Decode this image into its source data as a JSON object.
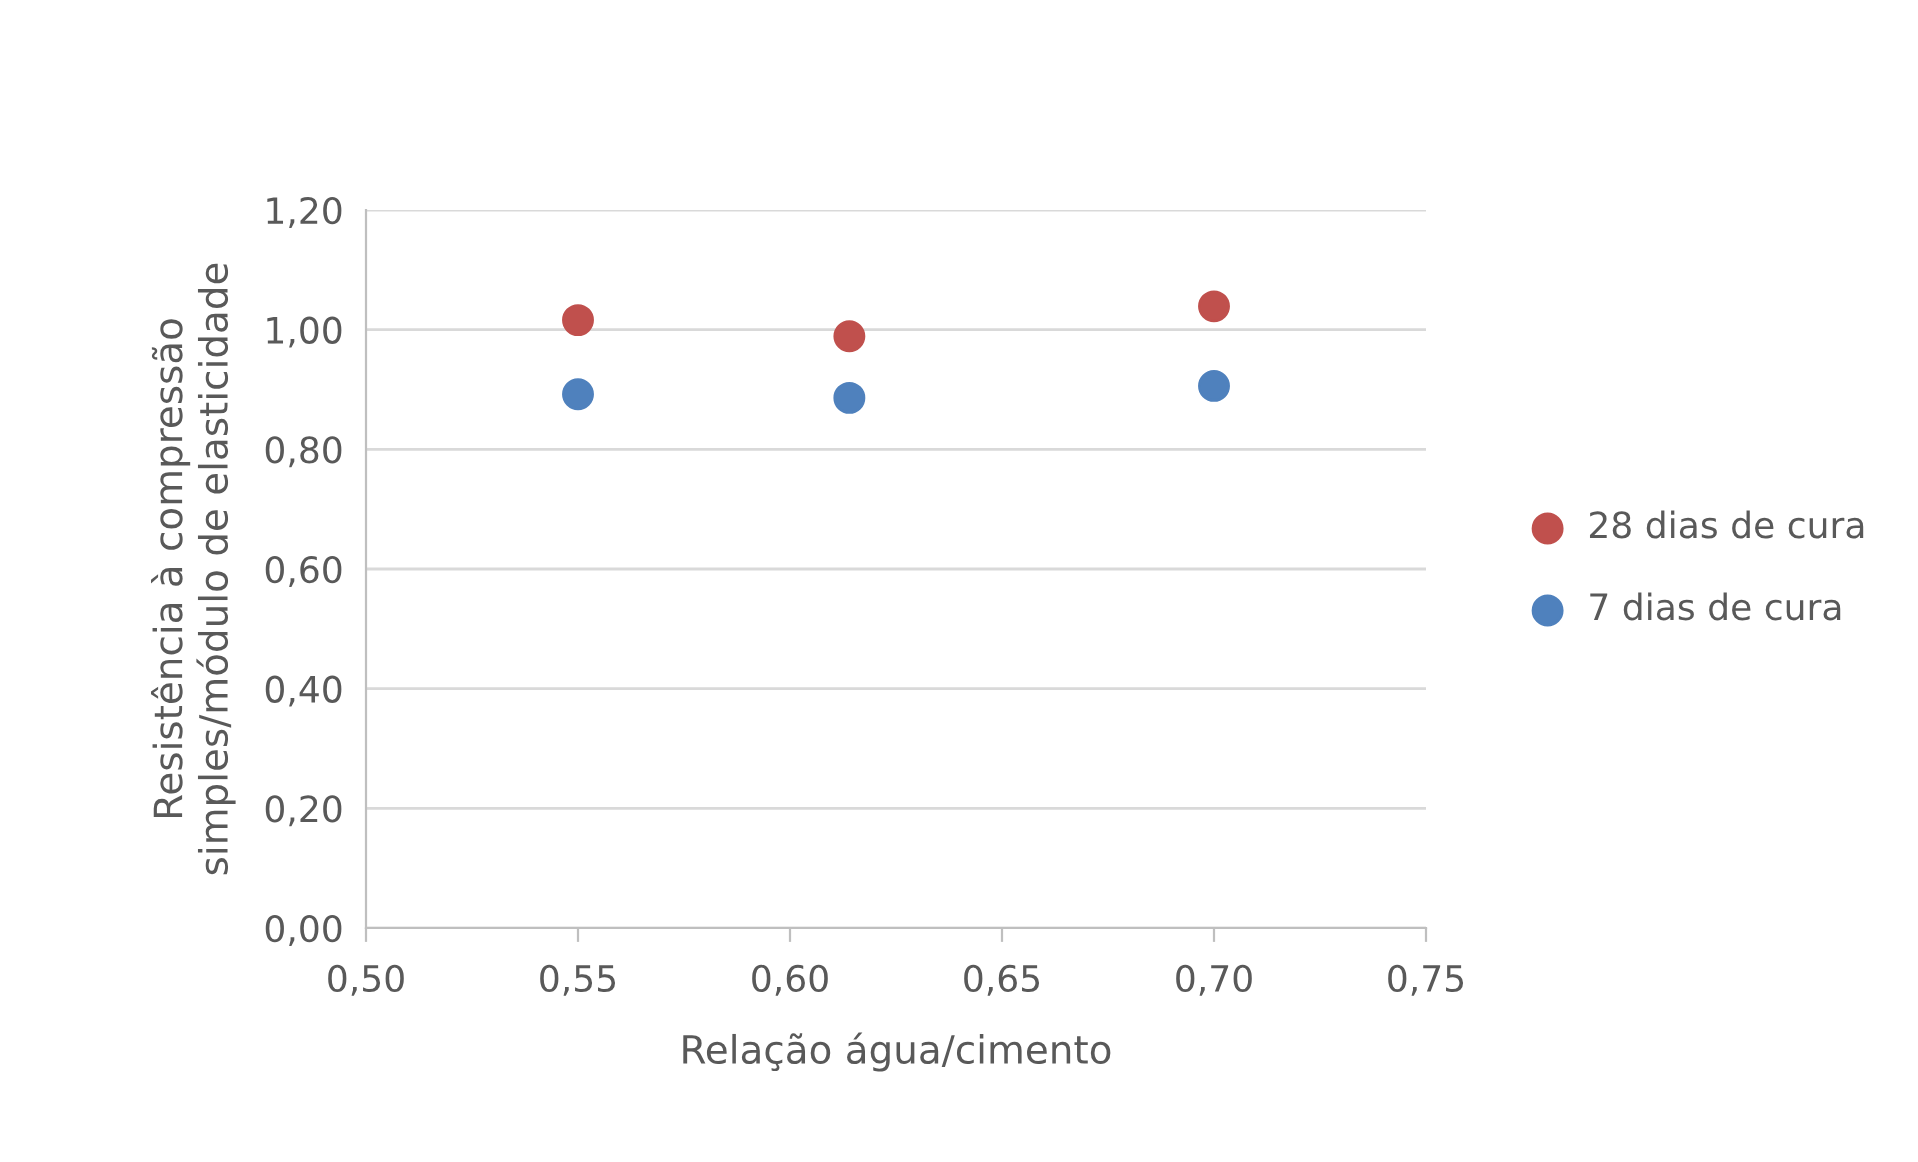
{
  "chart_data": {
    "type": "scatter",
    "xlabel": "Relação água/cimento",
    "ylabel": "Resistência à compressão\nsimples/módulo de elasticidade",
    "series": [
      {
        "name": "28 dias de cura",
        "color": "#c0504d",
        "x": [
          0.55,
          0.614,
          0.7
        ],
        "values": [
          1.016,
          0.989,
          1.039
        ]
      },
      {
        "name": "7 dias de cura",
        "color": "#4f81bd",
        "x": [
          0.55,
          0.614,
          0.7
        ],
        "values": [
          0.892,
          0.886,
          0.906
        ]
      }
    ],
    "xlim": [
      0.5,
      0.75
    ],
    "xticks": [
      {
        "value": 0.5,
        "label": "0,50"
      },
      {
        "value": 0.55,
        "label": "0,55"
      },
      {
        "value": 0.6,
        "label": "0,60"
      },
      {
        "value": 0.65,
        "label": "0,65"
      },
      {
        "value": 0.7,
        "label": "0,70"
      },
      {
        "value": 0.75,
        "label": "0,75"
      }
    ],
    "ylim": [
      0,
      1.2
    ],
    "yticks": [
      {
        "value": 0,
        "label": "0,00"
      },
      {
        "value": 0.2,
        "label": "0,20"
      },
      {
        "value": 0.4,
        "label": "0,40"
      },
      {
        "value": 0.6,
        "label": "0,60"
      },
      {
        "value": 0.8,
        "label": "0,80"
      },
      {
        "value": 1.0,
        "label": "1,00"
      },
      {
        "value": 1.2,
        "label": "1,20"
      }
    ],
    "grid": "y",
    "legend": "right",
    "marker": "circle"
  }
}
